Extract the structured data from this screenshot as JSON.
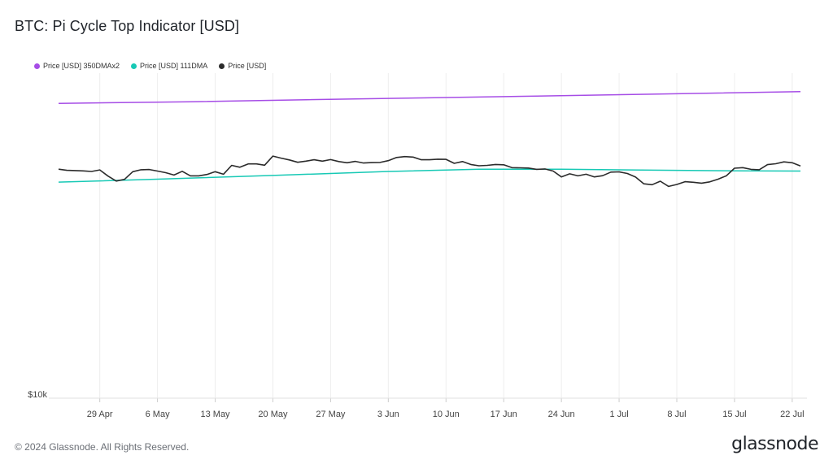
{
  "title": "BTC: Pi Cycle Top Indicator [USD]",
  "footer": "© 2024 Glassnode. All Rights Reserved.",
  "brand": "glassnode",
  "chart_data": {
    "type": "line",
    "title": "BTC: Pi Cycle Top Indicator [USD]",
    "y_scale": "log",
    "y_tick_labels": [
      "$10k"
    ],
    "x_tick_labels": [
      "29 Apr",
      "6 May",
      "13 May",
      "20 May",
      "27 May",
      "3 Jun",
      "10 Jun",
      "17 Jun",
      "24 Jun",
      "1 Jul",
      "8 Jul",
      "15 Jul",
      "22 Jul"
    ],
    "x_range": [
      "2024-04-24",
      "2024-07-23"
    ],
    "y_range": [
      10000,
      140000
    ],
    "grid": "vertical",
    "legend_position": "top-left",
    "series": [
      {
        "name": "Price [USD] 350DMAx2",
        "color": "#a64de6",
        "points": [
          [
            "2024-04-24",
            109500
          ],
          [
            "2024-05-10",
            111000
          ],
          [
            "2024-05-24",
            112800
          ],
          [
            "2024-06-07",
            114500
          ],
          [
            "2024-06-21",
            116200
          ],
          [
            "2024-07-05",
            118000
          ],
          [
            "2024-07-23",
            120500
          ]
        ]
      },
      {
        "name": "Price [USD] 111DMA",
        "color": "#17c9b5",
        "points": [
          [
            "2024-04-24",
            57800
          ],
          [
            "2024-05-06",
            59200
          ],
          [
            "2024-05-20",
            61000
          ],
          [
            "2024-06-03",
            63000
          ],
          [
            "2024-06-14",
            64200
          ],
          [
            "2024-06-24",
            64200
          ],
          [
            "2024-07-05",
            63700
          ],
          [
            "2024-07-15",
            63300
          ],
          [
            "2024-07-23",
            63200
          ]
        ]
      },
      {
        "name": "Price [USD]",
        "color": "#2b2b2b",
        "points": [
          [
            "2024-04-24",
            64200
          ],
          [
            "2024-04-25",
            63600
          ],
          [
            "2024-04-27",
            63300
          ],
          [
            "2024-04-28",
            63000
          ],
          [
            "2024-04-29",
            63800
          ],
          [
            "2024-04-30",
            60700
          ],
          [
            "2024-05-01",
            58300
          ],
          [
            "2024-05-02",
            59100
          ],
          [
            "2024-05-03",
            62900
          ],
          [
            "2024-05-04",
            63900
          ],
          [
            "2024-05-05",
            64000
          ],
          [
            "2024-05-06",
            63200
          ],
          [
            "2024-05-07",
            62400
          ],
          [
            "2024-05-08",
            61200
          ],
          [
            "2024-05-09",
            63100
          ],
          [
            "2024-05-10",
            60800
          ],
          [
            "2024-05-11",
            60800
          ],
          [
            "2024-05-12",
            61500
          ],
          [
            "2024-05-13",
            62900
          ],
          [
            "2024-05-14",
            61600
          ],
          [
            "2024-05-15",
            66200
          ],
          [
            "2024-05-16",
            65200
          ],
          [
            "2024-05-17",
            67000
          ],
          [
            "2024-05-18",
            67000
          ],
          [
            "2024-05-19",
            66300
          ],
          [
            "2024-05-20",
            71400
          ],
          [
            "2024-05-21",
            70200
          ],
          [
            "2024-05-22",
            69200
          ],
          [
            "2024-05-23",
            67900
          ],
          [
            "2024-05-24",
            68500
          ],
          [
            "2024-05-25",
            69300
          ],
          [
            "2024-05-26",
            68500
          ],
          [
            "2024-05-27",
            69400
          ],
          [
            "2024-05-28",
            68300
          ],
          [
            "2024-05-29",
            67600
          ],
          [
            "2024-05-30",
            68400
          ],
          [
            "2024-05-31",
            67500
          ],
          [
            "2024-06-01",
            67700
          ],
          [
            "2024-06-02",
            67800
          ],
          [
            "2024-06-03",
            68800
          ],
          [
            "2024-06-04",
            70600
          ],
          [
            "2024-06-05",
            71100
          ],
          [
            "2024-06-06",
            70800
          ],
          [
            "2024-06-07",
            69300
          ],
          [
            "2024-06-08",
            69300
          ],
          [
            "2024-06-09",
            69600
          ],
          [
            "2024-06-10",
            69500
          ],
          [
            "2024-06-11",
            67300
          ],
          [
            "2024-06-12",
            68300
          ],
          [
            "2024-06-13",
            66700
          ],
          [
            "2024-06-14",
            66000
          ],
          [
            "2024-06-15",
            66200
          ],
          [
            "2024-06-16",
            66700
          ],
          [
            "2024-06-17",
            66500
          ],
          [
            "2024-06-18",
            65000
          ],
          [
            "2024-06-19",
            64900
          ],
          [
            "2024-06-20",
            64800
          ],
          [
            "2024-06-21",
            64100
          ],
          [
            "2024-06-22",
            64300
          ],
          [
            "2024-06-23",
            63200
          ],
          [
            "2024-06-24",
            60300
          ],
          [
            "2024-06-25",
            61800
          ],
          [
            "2024-06-26",
            60800
          ],
          [
            "2024-06-27",
            61600
          ],
          [
            "2024-06-28",
            60300
          ],
          [
            "2024-06-29",
            60900
          ],
          [
            "2024-06-30",
            62700
          ],
          [
            "2024-07-01",
            62800
          ],
          [
            "2024-07-02",
            62000
          ],
          [
            "2024-07-03",
            60200
          ],
          [
            "2024-07-04",
            57000
          ],
          [
            "2024-07-05",
            56600
          ],
          [
            "2024-07-06",
            58200
          ],
          [
            "2024-07-07",
            55800
          ],
          [
            "2024-07-08",
            56700
          ],
          [
            "2024-07-09",
            58000
          ],
          [
            "2024-07-10",
            57700
          ],
          [
            "2024-07-11",
            57300
          ],
          [
            "2024-07-12",
            57900
          ],
          [
            "2024-07-13",
            59200
          ],
          [
            "2024-07-14",
            60800
          ],
          [
            "2024-07-15",
            64700
          ],
          [
            "2024-07-16",
            65000
          ],
          [
            "2024-07-17",
            64100
          ],
          [
            "2024-07-18",
            63900
          ],
          [
            "2024-07-19",
            66600
          ],
          [
            "2024-07-20",
            67100
          ],
          [
            "2024-07-21",
            68100
          ],
          [
            "2024-07-22",
            67600
          ],
          [
            "2024-07-23",
            65900
          ]
        ]
      }
    ]
  }
}
